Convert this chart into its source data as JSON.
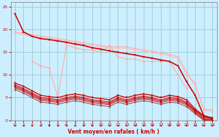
{
  "bg_color": "#cceeff",
  "grid_color": "#99cccc",
  "xlabel": "Vent moyen/en rafales ( km/h )",
  "xlabel_color": "#cc0000",
  "xlim": [
    -0.5,
    23.5
  ],
  "ylim": [
    0,
    26
  ],
  "xticks": [
    0,
    1,
    2,
    3,
    4,
    5,
    6,
    7,
    8,
    9,
    10,
    11,
    12,
    13,
    14,
    15,
    16,
    17,
    18,
    19,
    20,
    21,
    22,
    23
  ],
  "yticks": [
    0,
    5,
    10,
    15,
    20,
    25
  ],
  "tick_color": "#cc0000",
  "series": [
    {
      "name": "light_upper1",
      "x": [
        0,
        1,
        2,
        3,
        4,
        5,
        6,
        7,
        8,
        9,
        10,
        11,
        12,
        13,
        14,
        15,
        16,
        17,
        18,
        19,
        20,
        21,
        22,
        23
      ],
      "y": [
        19.5,
        19.2,
        18.9,
        18.6,
        18.3,
        18.0,
        17.7,
        17.4,
        17.1,
        16.8,
        16.5,
        16.2,
        16.2,
        16.2,
        15.8,
        15.5,
        15.2,
        14.9,
        14.5,
        14.0,
        10.5,
        8.0,
        2.5,
        2.2
      ],
      "color": "#ffaaaa",
      "lw": 0.8,
      "marker": "D",
      "ms": 1.5,
      "zorder": 2
    },
    {
      "name": "light_upper2",
      "x": [
        0,
        1,
        2,
        3,
        4,
        5,
        6,
        7,
        8,
        9,
        10,
        11,
        12,
        13,
        14,
        15,
        16,
        17,
        18,
        19,
        20,
        21,
        22,
        23
      ],
      "y": [
        19.2,
        18.9,
        18.6,
        18.3,
        18.0,
        17.7,
        17.4,
        17.1,
        16.8,
        16.5,
        16.2,
        15.9,
        15.9,
        15.9,
        15.5,
        15.2,
        14.9,
        14.6,
        14.2,
        13.7,
        10.2,
        7.7,
        2.2,
        1.9
      ],
      "color": "#ffbbbb",
      "lw": 0.8,
      "marker": "D",
      "ms": 1.5,
      "zorder": 2
    },
    {
      "name": "light_zigzag",
      "x": [
        2,
        3,
        4,
        5,
        6,
        7,
        8,
        9,
        10,
        11,
        12,
        13,
        14,
        15,
        16,
        17,
        18,
        19,
        20
      ],
      "y": [
        13.0,
        12.0,
        11.5,
        5.0,
        16.5,
        16.0,
        15.5,
        15.5,
        15.0,
        16.5,
        14.0,
        13.5,
        13.5,
        13.0,
        13.0,
        13.0,
        13.0,
        10.0,
        7.0
      ],
      "color": "#ffaaaa",
      "lw": 0.8,
      "marker": "D",
      "ms": 1.5,
      "zorder": 2
    },
    {
      "name": "dark_top",
      "x": [
        0,
        1,
        2,
        3,
        4,
        5,
        6,
        7,
        8,
        9,
        10,
        11,
        12,
        13,
        14,
        15,
        16,
        17,
        18,
        19,
        20,
        21,
        22,
        23
      ],
      "y": [
        23.5,
        19.5,
        18.5,
        18.0,
        17.8,
        17.5,
        17.2,
        16.8,
        16.5,
        16.0,
        15.7,
        15.3,
        15.0,
        14.7,
        14.4,
        14.0,
        13.7,
        13.3,
        13.0,
        12.0,
        8.5,
        5.5,
        1.0,
        0.5
      ],
      "color": "#cc0000",
      "lw": 1.2,
      "marker": "s",
      "ms": 2.0,
      "zorder": 5
    },
    {
      "name": "dark_mid1",
      "x": [
        0,
        1,
        2,
        3,
        4,
        5,
        6,
        7,
        8,
        9,
        10,
        11,
        12,
        13,
        14,
        15,
        16,
        17,
        18,
        19,
        20,
        21,
        22,
        23
      ],
      "y": [
        8.2,
        7.5,
        6.5,
        5.5,
        5.2,
        5.0,
        5.5,
        5.8,
        5.5,
        5.0,
        4.8,
        4.5,
        5.5,
        5.0,
        5.5,
        5.8,
        5.5,
        5.0,
        5.5,
        5.2,
        4.5,
        2.5,
        1.0,
        0.5
      ],
      "color": "#cc0000",
      "lw": 1.0,
      "marker": "s",
      "ms": 1.8,
      "zorder": 5
    },
    {
      "name": "dark_mid2",
      "x": [
        0,
        1,
        2,
        3,
        4,
        5,
        6,
        7,
        8,
        9,
        10,
        11,
        12,
        13,
        14,
        15,
        16,
        17,
        18,
        19,
        20,
        21,
        22,
        23
      ],
      "y": [
        7.8,
        7.0,
        6.0,
        5.0,
        4.8,
        4.5,
        5.0,
        5.3,
        5.0,
        4.5,
        4.3,
        4.0,
        5.0,
        4.5,
        5.0,
        5.3,
        5.0,
        4.5,
        5.0,
        4.8,
        4.0,
        2.2,
        0.8,
        0.3
      ],
      "color": "#cc0000",
      "lw": 0.8,
      "marker": "s",
      "ms": 1.5,
      "zorder": 5
    },
    {
      "name": "dark_mid3",
      "x": [
        0,
        1,
        2,
        3,
        4,
        5,
        6,
        7,
        8,
        9,
        10,
        11,
        12,
        13,
        14,
        15,
        16,
        17,
        18,
        19,
        20,
        21,
        22,
        23
      ],
      "y": [
        7.5,
        6.7,
        5.7,
        4.7,
        4.5,
        4.2,
        4.7,
        5.0,
        4.7,
        4.2,
        4.0,
        3.7,
        4.7,
        4.2,
        4.7,
        5.0,
        4.7,
        4.2,
        4.7,
        4.5,
        3.7,
        2.0,
        0.5,
        0.1
      ],
      "color": "#cc0000",
      "lw": 0.8,
      "marker": "s",
      "ms": 1.5,
      "zorder": 4
    },
    {
      "name": "dark_lower",
      "x": [
        0,
        1,
        2,
        3,
        4,
        5,
        6,
        7,
        8,
        9,
        10,
        11,
        12,
        13,
        14,
        15,
        16,
        17,
        18,
        19,
        20,
        21,
        22,
        23
      ],
      "y": [
        7.2,
        6.4,
        5.4,
        4.4,
        4.2,
        3.9,
        4.4,
        4.7,
        4.4,
        3.9,
        3.7,
        3.4,
        4.4,
        3.9,
        4.4,
        4.7,
        4.4,
        3.9,
        4.4,
        4.2,
        3.4,
        1.7,
        0.2,
        0.0
      ],
      "color": "#cc0000",
      "lw": 0.7,
      "marker": "s",
      "ms": 1.2,
      "zorder": 4
    },
    {
      "name": "dark_baseline",
      "x": [
        0,
        1,
        2,
        3,
        4,
        5,
        6,
        7,
        8,
        9,
        10,
        11,
        12,
        13,
        14,
        15,
        16,
        17,
        18,
        19,
        20,
        21,
        22,
        23
      ],
      "y": [
        6.8,
        6.0,
        5.0,
        4.0,
        3.8,
        3.5,
        4.0,
        4.3,
        4.0,
        3.5,
        3.3,
        3.0,
        4.0,
        3.5,
        4.0,
        4.3,
        4.0,
        3.5,
        4.0,
        3.8,
        3.0,
        1.4,
        0.0,
        0.0
      ],
      "color": "#993333",
      "lw": 0.7,
      "marker": "s",
      "ms": 1.2,
      "zorder": 4
    }
  ],
  "arrows": {
    "x": [
      0,
      1,
      2,
      3,
      4,
      5,
      6,
      7,
      8,
      9,
      10,
      11,
      12,
      13,
      14,
      15,
      16,
      17,
      18,
      19,
      20,
      21,
      22,
      23
    ],
    "y": -1.2,
    "color": "#cc0000"
  }
}
